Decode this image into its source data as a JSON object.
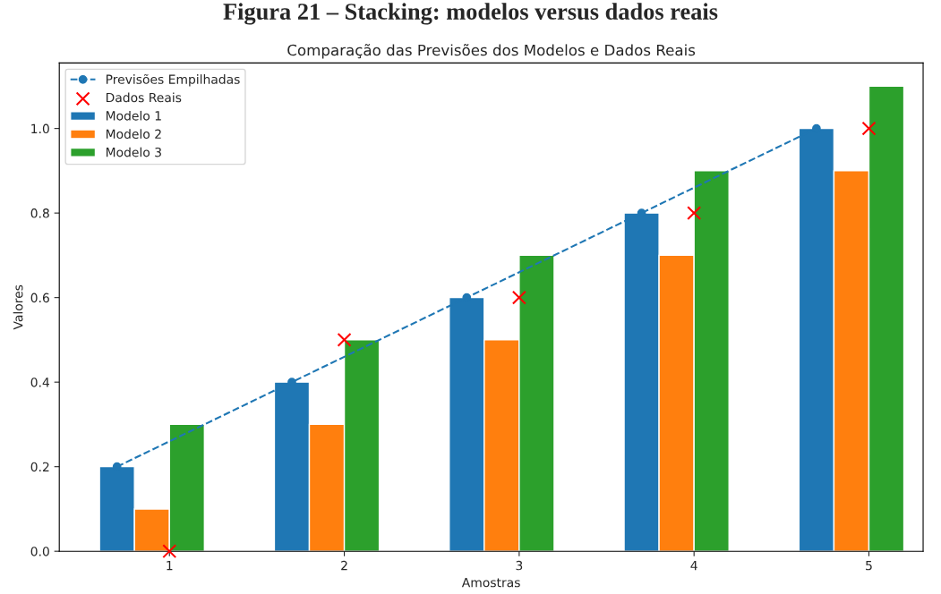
{
  "chart_data": {
    "type": "bar",
    "title": "Figura 21 – Stacking: modelos versus dados reais",
    "subtitle": "Comparação das Previsões dos Modelos e Dados Reais",
    "xlabel": "Amostras",
    "ylabel": "Valores",
    "series": [
      {
        "name": "Previsões Empilhadas",
        "type": "line",
        "color": "#1f77b4",
        "marker": "circle",
        "line_style": "dashed",
        "x": [
          0.7,
          1.7,
          2.7,
          3.7,
          4.7
        ],
        "values": [
          0.2,
          0.4,
          0.6,
          0.8,
          1.0
        ]
      },
      {
        "name": "Dados Reais",
        "type": "scatter",
        "color": "#ff0000",
        "marker": "cross",
        "x": [
          1,
          2,
          3,
          4,
          5
        ],
        "values": [
          0.0,
          0.5,
          0.6,
          0.8,
          1.0
        ]
      },
      {
        "name": "Modelo 1",
        "color": "#1f77b4",
        "x": [
          0.7,
          1.7,
          2.7,
          3.7,
          4.7
        ],
        "values": [
          0.2,
          0.4,
          0.6,
          0.8,
          1.0
        ]
      },
      {
        "name": "Modelo 2",
        "color": "#ff7f0e",
        "x": [
          0.9,
          1.9,
          2.9,
          3.9,
          4.9
        ],
        "values": [
          0.1,
          0.3,
          0.5,
          0.7,
          0.9
        ]
      },
      {
        "name": "Modelo 3",
        "color": "#2ca02c",
        "x": [
          1.1,
          2.1,
          3.1,
          4.1,
          5.1
        ],
        "values": [
          0.3,
          0.5,
          0.7,
          0.9,
          1.1
        ]
      }
    ],
    "xlim": [
      0.37,
      5.31
    ],
    "xticks": [
      1,
      2,
      3,
      4,
      5
    ],
    "ylim": [
      0,
      1.155
    ],
    "yticks": [
      {
        "value": 0,
        "label": "0.0"
      },
      {
        "value": 0.2,
        "label": "0.2"
      },
      {
        "value": 0.4,
        "label": "0.4"
      },
      {
        "value": 0.6,
        "label": "0.6"
      },
      {
        "value": 0.8,
        "label": "0.8"
      },
      {
        "value": 1,
        "label": "1.0"
      }
    ],
    "grid": false,
    "legend": "top left"
  }
}
